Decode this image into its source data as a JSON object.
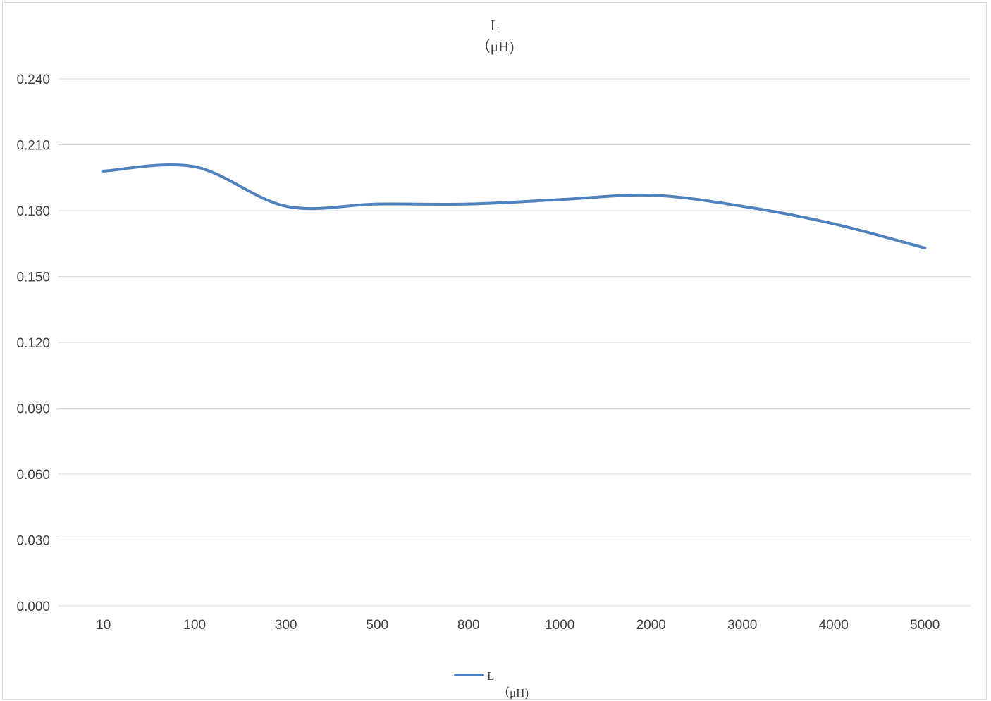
{
  "chart_data": {
    "type": "line",
    "title": {
      "line1": "L",
      "line2": "（μH)"
    },
    "categories": [
      "10",
      "100",
      "300",
      "500",
      "800",
      "1000",
      "2000",
      "3000",
      "4000",
      "5000"
    ],
    "series": [
      {
        "name_line1": "L",
        "name_line2": "（μH)",
        "values": [
          0.198,
          0.2,
          0.182,
          0.183,
          0.183,
          0.185,
          0.187,
          0.182,
          0.174,
          0.163
        ],
        "color": "#4f81bd"
      }
    ],
    "yticks": [
      "0.000",
      "0.030",
      "0.060",
      "0.090",
      "0.120",
      "0.150",
      "0.180",
      "0.210",
      "0.240"
    ],
    "ylim": [
      0,
      0.24
    ],
    "grid": true,
    "smooth": true,
    "legend_position": "bottom",
    "colors": {
      "grid": "#d9d9d9",
      "text": "#404040"
    }
  }
}
